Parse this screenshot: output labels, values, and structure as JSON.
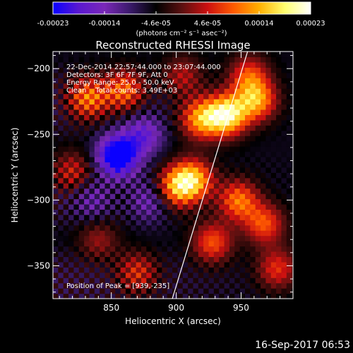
{
  "chart_data": {
    "type": "heatmap",
    "title": "Reconstructed RHESSI Image",
    "xlabel": "Heliocentric X (arcsec)",
    "ylabel": "Heliocentric Y (arcsec)",
    "xlim": [
      805,
      990
    ],
    "ylim": [
      -375,
      -187
    ],
    "x_ticks": [
      850,
      900,
      950
    ],
    "y_ticks": [
      -200,
      -250,
      -300,
      -350
    ],
    "colorbar": {
      "ticks": [
        "-0.00023",
        "-0.00014",
        "-4.6e-05",
        "4.6e-05",
        "0.00014",
        "0.00023"
      ],
      "range": [
        -0.00023,
        0.00023
      ],
      "unit_label": "(photons cm⁻² s⁻¹ asec⁻²)",
      "colors": [
        "#0a00ff",
        "#5a18d0",
        "#7a28b8",
        "#3a1a6a",
        "#000000",
        "#5a1010",
        "#cc1010",
        "#ff5a00",
        "#ffb000",
        "#ffff70",
        "#ffffff"
      ]
    },
    "annotations": [
      "22-Dec-2014 22:57:44.000 to 23:07:44.000",
      "Detectors: 3F 6F 7F 9F, Att 0",
      "Energy Range: 25.0 - 50.0 keV",
      "Clean    Total counts: 3.49E+03"
    ],
    "peak_label": "Position of Peak = [939,-235]",
    "peak": [
      939,
      -235
    ],
    "grid_cell_arcsec": 4,
    "limb_line": [
      [
        897,
        -375
      ],
      [
        955,
        -187
      ]
    ],
    "hot_spots": [
      {
        "x": 939,
        "y": -235,
        "v": 0.00023
      },
      {
        "x": 919,
        "y": -238,
        "v": 0.00016
      },
      {
        "x": 962,
        "y": -224,
        "v": 0.00016
      },
      {
        "x": 913,
        "y": -284,
        "v": 0.00017
      },
      {
        "x": 900,
        "y": -290,
        "v": 0.00015
      },
      {
        "x": 832,
        "y": -222,
        "v": 0.00014
      },
      {
        "x": 860,
        "y": -216,
        "v": 0.00013
      },
      {
        "x": 956,
        "y": -205,
        "v": 0.00011
      },
      {
        "x": 948,
        "y": -300,
        "v": 0.00014
      },
      {
        "x": 968,
        "y": -318,
        "v": 0.00012
      },
      {
        "x": 928,
        "y": -332,
        "v": 0.00012
      },
      {
        "x": 978,
        "y": -352,
        "v": 0.0001
      },
      {
        "x": 870,
        "y": -355,
        "v": 9e-05
      },
      {
        "x": 820,
        "y": -278,
        "v": 8e-05
      },
      {
        "x": 840,
        "y": -330,
        "v": 6e-05
      },
      {
        "x": 905,
        "y": -205,
        "v": 7e-05
      }
    ],
    "cold_spots": [
      {
        "x": 855,
        "y": -266,
        "v": -0.00023
      },
      {
        "x": 875,
        "y": -250,
        "v": -0.00011
      },
      {
        "x": 880,
        "y": -300,
        "v": -8e-05
      },
      {
        "x": 835,
        "y": -300,
        "v": -7e-05
      }
    ]
  },
  "footer": {
    "timestamp": "16-Sep-2017 06:53"
  }
}
